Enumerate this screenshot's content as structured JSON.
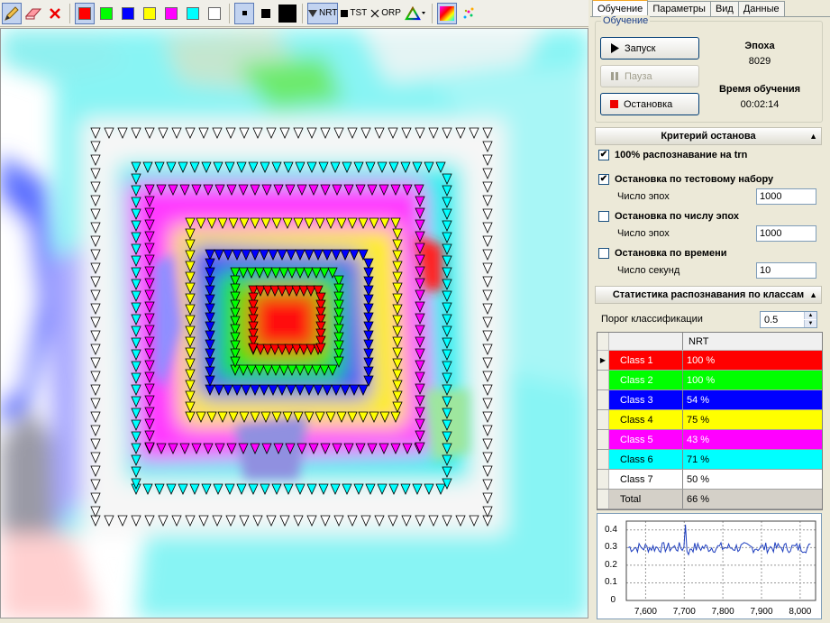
{
  "toolbar": {
    "tools": [
      "pencil-icon",
      "eraser-icon",
      "delete-icon"
    ],
    "color_swatches": [
      "#ff0000",
      "#00ff00",
      "#0000ff",
      "#ffff00",
      "#ff00ff",
      "#00ffff",
      "#ffffff"
    ],
    "nrt_label": "NRT",
    "tst_label": "TST",
    "orp_label": "ORP"
  },
  "tabs": [
    "Обучение",
    "Параметры",
    "Вид",
    "Данные"
  ],
  "training": {
    "group_title": "Обучение",
    "start_label": "Запуск",
    "pause_label": "Пауза",
    "stop_label": "Остановка",
    "epoch_label": "Эпоха",
    "epoch_value": "8029",
    "time_label": "Время обучения",
    "time_value": "00:02:14"
  },
  "stop_criteria": {
    "header": "Критерий останова",
    "items": [
      {
        "label": "100% распознавание на trn",
        "checked": true
      },
      {
        "label": "Остановка по тестовому набору",
        "checked": true,
        "sub_label": "Число эпох",
        "value": "1000"
      },
      {
        "label": "Остановка по числу эпох",
        "checked": false,
        "sub_label": "Число эпох",
        "value": "1000"
      },
      {
        "label": "Остановка по времени",
        "checked": false,
        "sub_label": "Число секунд",
        "value": "10"
      }
    ]
  },
  "class_stats": {
    "header": "Статистика распознавания по классам",
    "threshold_label": "Порог классификации",
    "threshold_value": "0.5",
    "column_header": "NRT",
    "rows": [
      {
        "name": "Class 1",
        "value": "100 %",
        "color": "#ff0000",
        "text_color": "#ffffff"
      },
      {
        "name": "Class 2",
        "value": "100 %",
        "color": "#00ff00",
        "text_color": "#ffffff"
      },
      {
        "name": "Class 3",
        "value": "54 %",
        "color": "#0000ff",
        "text_color": "#ffffff"
      },
      {
        "name": "Class 4",
        "value": "75 %",
        "color": "#ffff00",
        "text_color": "#000000"
      },
      {
        "name": "Class 5",
        "value": "43 %",
        "color": "#ff00ff",
        "text_color": "#ffffff"
      },
      {
        "name": "Class 6",
        "value": "71 %",
        "color": "#00ffff",
        "text_color": "#000000"
      },
      {
        "name": "Class 7",
        "value": "50 %",
        "color": "#ffffff",
        "text_color": "#000000"
      },
      {
        "name": "Total",
        "value": "66 %",
        "color": "#d4d0c8",
        "text_color": "#000000"
      }
    ]
  },
  "mini_chart": {
    "y_ticks": [
      "0.4",
      "0.3",
      "0.2",
      "0.1",
      "0"
    ],
    "x_ticks": [
      "7,600",
      "7,700",
      "7,800",
      "7,900",
      "8,000"
    ]
  }
}
